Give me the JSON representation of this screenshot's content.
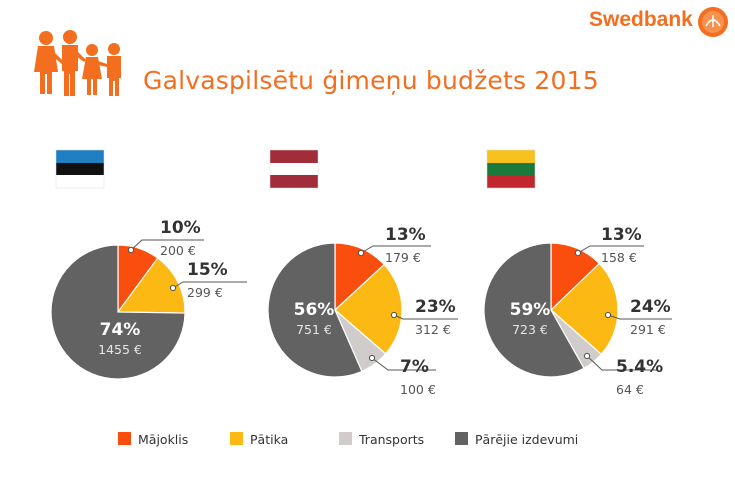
{
  "brand": {
    "name": "Swedbank"
  },
  "title": "Galvaspilsētu ģimeņu budžets 2015",
  "colors": {
    "accent": "#f36e1f",
    "majoklis": "#f94e0d",
    "patika": "#fcb813",
    "transports": "#cfcccb",
    "parejie": "#626262"
  },
  "chart_data": {
    "type": "pie",
    "title": "Galvaspilsētu ģimeņu budžets 2015",
    "categories": [
      "Mājoklis",
      "Pātika",
      "Transports",
      "Pārējie izdevumi"
    ],
    "legend": {
      "placement": "bottom"
    },
    "charts": [
      {
        "flag": "estonia",
        "values_pct": [
          10,
          15,
          0,
          74
        ],
        "values_eur": [
          200,
          299,
          null,
          1455
        ],
        "labels": [
          {
            "pct": "10%",
            "eur": "200 €"
          },
          {
            "pct": "15%",
            "eur": "299 €"
          },
          null,
          {
            "pct": "74%",
            "eur": "1455 €"
          }
        ]
      },
      {
        "flag": "latvia",
        "values_pct": [
          13,
          23,
          7,
          56
        ],
        "values_eur": [
          179,
          312,
          100,
          751
        ],
        "labels": [
          {
            "pct": "13%",
            "eur": "179 €"
          },
          {
            "pct": "23%",
            "eur": "312 €"
          },
          {
            "pct": "7%",
            "eur": "100 €"
          },
          {
            "pct": "56%",
            "eur": "751 €"
          }
        ]
      },
      {
        "flag": "lithuania",
        "values_pct": [
          13,
          24,
          5.4,
          59
        ],
        "values_eur": [
          158,
          291,
          64,
          723
        ],
        "labels": [
          {
            "pct": "13%",
            "eur": "158 €"
          },
          {
            "pct": "24%",
            "eur": "291 €"
          },
          {
            "pct": "5.4%",
            "eur": "64 €"
          },
          {
            "pct": "59%",
            "eur": "723 €"
          }
        ]
      }
    ]
  }
}
